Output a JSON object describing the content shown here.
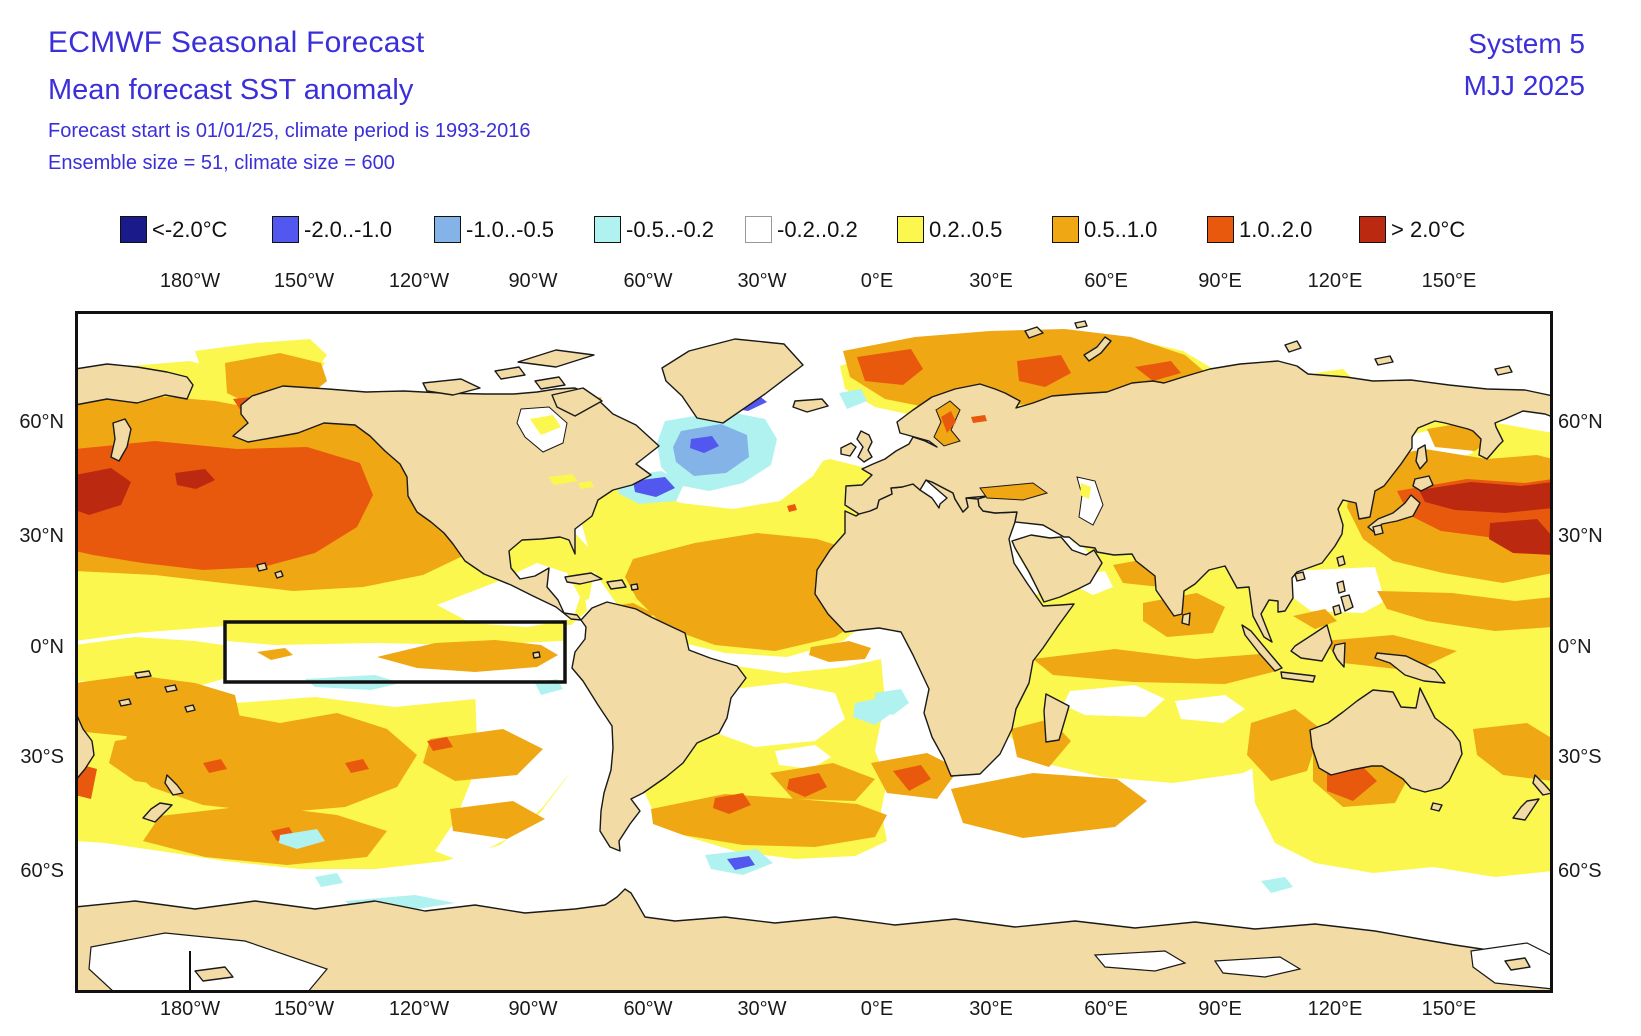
{
  "header": {
    "title": "ECMWF Seasonal Forecast",
    "subtitle": "Mean forecast SST anomaly",
    "info1": "Forecast start is 01/01/25, climate period is 1993-2016",
    "info2": "Ensemble size = 51, climate size = 600",
    "system": "System 5",
    "period": "MJJ 2025"
  },
  "colors": {
    "title-blue": "#3b2fd9",
    "land": "#f2dba4",
    "coast": "#1a1a1a",
    "below-neg2": "#1a1a8a",
    "neg2-neg1": "#5257f0",
    "neg1-neg05": "#84b3e8",
    "neg05-neg02": "#b0f2f0",
    "neutral": "#ffffff",
    "pos02-05": "#fbf74e",
    "pos05-1": "#efa713",
    "pos1-2": "#e9590d",
    "above2": "#bb2a10"
  },
  "legend": {
    "items": [
      {
        "label": "<-2.0°C",
        "color": "#1a1a8a",
        "border": "#111111"
      },
      {
        "label": "-2.0..-1.0",
        "color": "#5257f0",
        "border": "#111111"
      },
      {
        "label": "-1.0..-0.5",
        "color": "#84b3e8",
        "border": "#111111"
      },
      {
        "label": "-0.5..-0.2",
        "color": "#b0f2f0",
        "border": "#111111"
      },
      {
        "label": "-0.2..0.2",
        "color": "#ffffff",
        "border": "#999999"
      },
      {
        "label": "0.2..0.5",
        "color": "#fbf74e",
        "border": "#111111"
      },
      {
        "label": "0.5..1.0",
        "color": "#efa713",
        "border": "#111111"
      },
      {
        "label": "1.0..2.0",
        "color": "#e9590d",
        "border": "#111111"
      },
      {
        "label": "> 2.0°C",
        "color": "#bb2a10",
        "border": "#111111"
      }
    ]
  },
  "axes": {
    "lon_top": [
      "180°W",
      "150°W",
      "120°W",
      "90°W",
      "60°W",
      "30°W",
      "0°E",
      "30°E",
      "60°E",
      "90°E",
      "120°E",
      "150°E"
    ],
    "lon_bottom": [
      "180°W",
      "150°W",
      "120°W",
      "90°W",
      "60°W",
      "30°W",
      "0°E",
      "30°E",
      "60°E",
      "90°E",
      "120°E",
      "150°E"
    ],
    "lat_left": [
      "60°N",
      "30°N",
      "0°N",
      "30°S",
      "60°S"
    ],
    "lat_right": [
      "60°N",
      "30°N",
      "0°N",
      "30°S",
      "60°S"
    ]
  },
  "map": {
    "features": [
      {
        "region": "North Pacific (30-55N)",
        "anomaly": "1.0..2.0 with >2.0 cores in west"
      },
      {
        "region": "NW Pacific east of Japan",
        "anomaly": "> 2.0 band in 1.0..2.0 field"
      },
      {
        "region": "Subpolar North Atlantic south of Greenland/Iceland",
        "anomaly": "-2.0..-1.0 cores in -1.0..-0.5 / -0.5..-0.2 blob"
      },
      {
        "region": "Equatorial Pacific (Nino box outlined)",
        "anomaly": "-0.2..0.2 with 0.5..1.0 tongue"
      },
      {
        "region": "Barents / Norwegian Sea",
        "anomaly": "0.5..1.0 with 1.0..2.0 cores"
      },
      {
        "region": "Baltic Sea",
        "anomaly": "1.0..2.0"
      },
      {
        "region": "Mediterranean Sea",
        "anomaly": "0.5..1.0"
      },
      {
        "region": "Subtropical North Atlantic",
        "anomaly": "0.5..1.0 in 0.2..0.5 field"
      },
      {
        "region": "South Atlantic ~40S band",
        "anomaly": "0.5..1.0 with 1.0..2.0 spots"
      },
      {
        "region": "South Indian Ocean ~40-55S",
        "anomaly": "0.2..1.0 patches"
      },
      {
        "region": "Tasman Sea / SE of Australia",
        "anomaly": "1.0..2.0 spots"
      },
      {
        "region": "Southern Ocean along Antarctica",
        "anomaly": "-0.2..0.2 with small -0.5..-0.2 spots"
      }
    ]
  }
}
